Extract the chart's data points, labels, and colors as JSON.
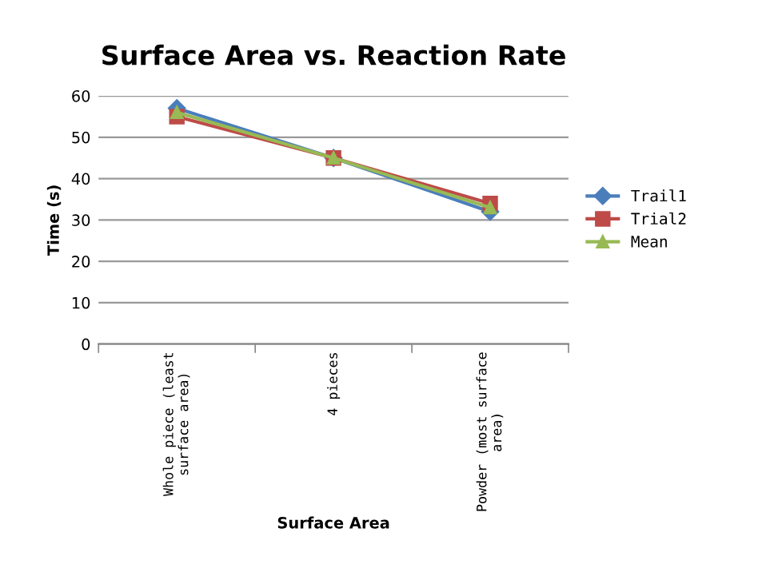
{
  "chart_data": {
    "type": "line",
    "title": "Surface Area vs. Reaction Rate",
    "xlabel": "Surface Area",
    "ylabel": "Time (s)",
    "categories": [
      "Whole piece (least surface area)",
      "4 pieces",
      "Powder (most surface area)"
    ],
    "series": [
      {
        "name": "Trail1",
        "color": "#4a7ebb",
        "marker": "diamond",
        "values": [
          57,
          45,
          32
        ]
      },
      {
        "name": "Trial2",
        "color": "#be4b48",
        "marker": "square",
        "values": [
          55,
          45,
          34
        ]
      },
      {
        "name": "Mean",
        "color": "#98b954",
        "marker": "triangle",
        "values": [
          56,
          45,
          33
        ]
      }
    ],
    "ylim": [
      0,
      60
    ],
    "yticks": [
      0,
      10,
      20,
      30,
      40,
      50,
      60
    ],
    "grid": "y",
    "legend": "right",
    "line_style": "solid"
  }
}
